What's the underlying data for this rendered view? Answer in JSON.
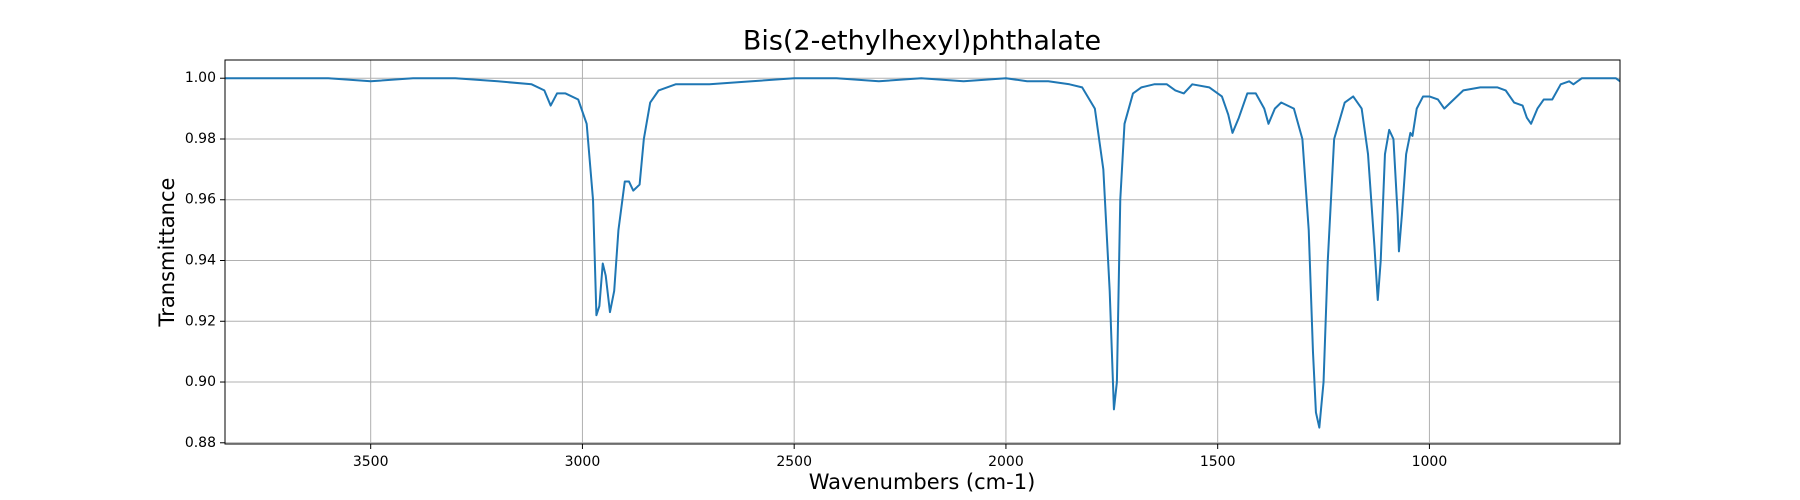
{
  "chart_data": {
    "type": "line",
    "title": "Bis(2-ethylhexyl)phthalate",
    "x_label": "Wavenumbers (cm-1)",
    "y_label": "Transmittance",
    "color": "#1f77b4",
    "grid": true,
    "xlim": [
      3844,
      550
    ],
    "ylim": [
      0.8796,
      1.006
    ],
    "xticks": [
      3500,
      3000,
      2500,
      2000,
      1500,
      1000
    ],
    "yticks": [
      0.88,
      {
        "value": 0.9,
        "label": "0.90"
      },
      0.92,
      0.94,
      0.96,
      0.98,
      {
        "value": 1,
        "label": "1.00"
      }
    ],
    "x": [
      3844,
      3700,
      3600,
      3500,
      3400,
      3300,
      3200,
      3120,
      3090,
      3075,
      3060,
      3040,
      3010,
      2990,
      2975,
      2967,
      2960,
      2952,
      2945,
      2935,
      2925,
      2915,
      2900,
      2890,
      2880,
      2865,
      2855,
      2840,
      2820,
      2780,
      2700,
      2600,
      2500,
      2400,
      2300,
      2200,
      2100,
      2000,
      1950,
      1900,
      1850,
      1820,
      1790,
      1770,
      1755,
      1745,
      1738,
      1730,
      1720,
      1700,
      1680,
      1650,
      1620,
      1600,
      1580,
      1560,
      1520,
      1490,
      1475,
      1465,
      1450,
      1430,
      1410,
      1390,
      1380,
      1365,
      1350,
      1320,
      1300,
      1285,
      1275,
      1268,
      1260,
      1250,
      1240,
      1225,
      1200,
      1180,
      1160,
      1145,
      1130,
      1122,
      1115,
      1105,
      1095,
      1085,
      1075,
      1072,
      1065,
      1055,
      1045,
      1040,
      1030,
      1015,
      1000,
      980,
      965,
      950,
      920,
      880,
      840,
      820,
      800,
      780,
      770,
      760,
      745,
      730,
      710,
      690,
      670,
      660,
      640,
      600,
      580,
      560,
      550
    ],
    "values": [
      1.0,
      1.0,
      1.0,
      0.999,
      1.0,
      1.0,
      0.999,
      0.998,
      0.996,
      0.991,
      0.995,
      0.995,
      0.993,
      0.985,
      0.96,
      0.922,
      0.925,
      0.939,
      0.935,
      0.923,
      0.93,
      0.95,
      0.966,
      0.966,
      0.963,
      0.965,
      0.98,
      0.992,
      0.996,
      0.998,
      0.998,
      0.999,
      1.0,
      1.0,
      0.999,
      1.0,
      0.999,
      1.0,
      0.999,
      0.999,
      0.998,
      0.997,
      0.99,
      0.97,
      0.93,
      0.891,
      0.9,
      0.96,
      0.985,
      0.995,
      0.997,
      0.998,
      0.998,
      0.996,
      0.995,
      0.998,
      0.997,
      0.994,
      0.988,
      0.982,
      0.987,
      0.995,
      0.995,
      0.99,
      0.985,
      0.99,
      0.992,
      0.99,
      0.98,
      0.95,
      0.91,
      0.89,
      0.885,
      0.9,
      0.94,
      0.98,
      0.992,
      0.994,
      0.99,
      0.975,
      0.945,
      0.927,
      0.94,
      0.975,
      0.983,
      0.98,
      0.955,
      0.943,
      0.955,
      0.975,
      0.982,
      0.981,
      0.99,
      0.994,
      0.994,
      0.993,
      0.99,
      0.992,
      0.996,
      0.997,
      0.997,
      0.996,
      0.992,
      0.991,
      0.987,
      0.985,
      0.99,
      0.993,
      0.993,
      0.998,
      0.999,
      0.998,
      1.0,
      1.0,
      1.0,
      1.0,
      0.999
    ]
  }
}
